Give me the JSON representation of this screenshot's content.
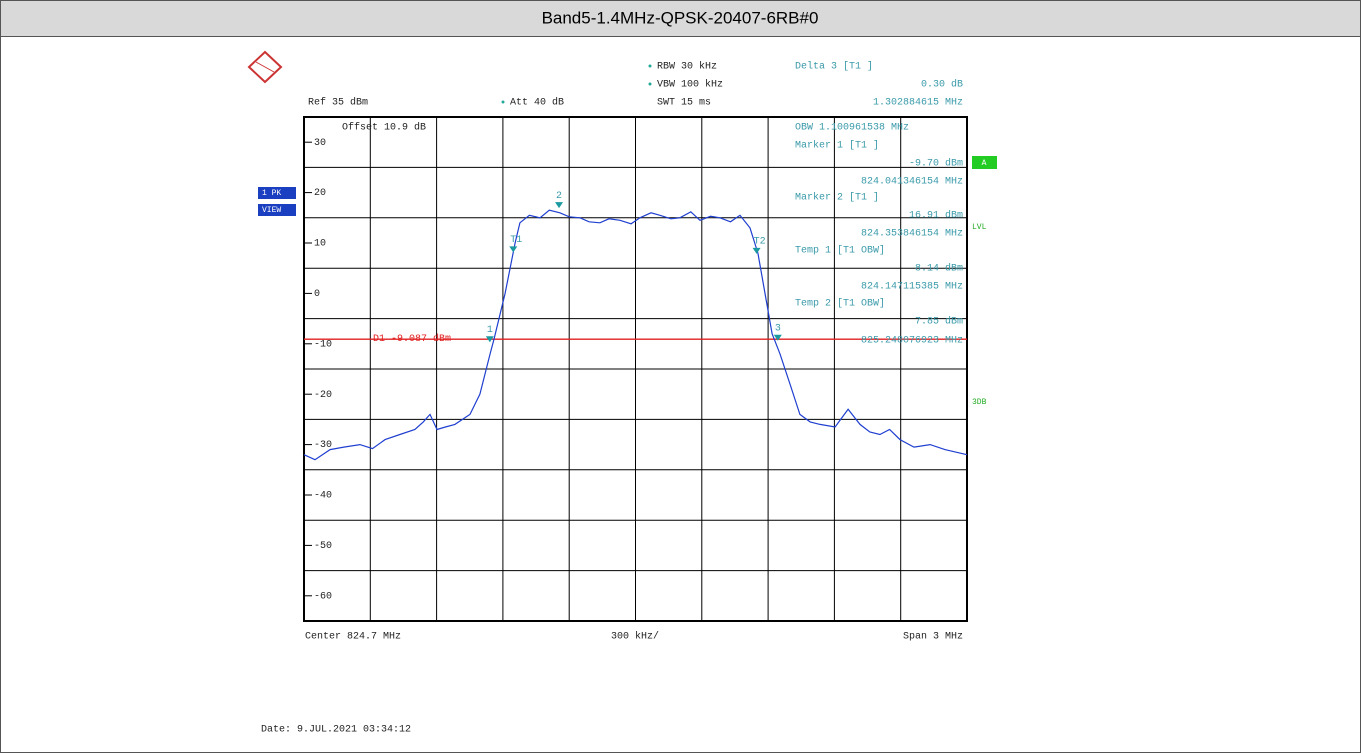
{
  "header": {
    "title": "Band5-1.4MHz-QPSK-20407-6RB#0"
  },
  "chart_data": {
    "type": "line",
    "settings": {
      "ref": "Ref  35 dBm",
      "att": "Att   40 dB",
      "rbw": "RBW  30 kHz",
      "vbw": "VBW  100 kHz",
      "swt": "SWT  15 ms",
      "offset": "Offset   10.9 dB"
    },
    "readout": [
      "Delta 3 [T1 ]",
      "0.30 dB",
      "1.302884615 MHz",
      "OBW  1.100961538 MHz",
      "Marker 1 [T1 ]",
      "-9.70 dBm",
      "824.041346154 MHz",
      "Marker 2 [T1 ]",
      "16.91 dBm",
      "824.353846154 MHz",
      "Temp 1 [T1 OBW]",
      "8.14 dBm",
      "824.147115385 MHz",
      "Temp 2 [T1 OBW]",
      "7.85 dBm",
      "825.248076923 MHz"
    ],
    "footer": {
      "center": "Center  824.7 MHz",
      "div": "300 kHz/",
      "span": "Span  3 MHz",
      "date": "Date: 9.JUL.2021  03:34:12"
    },
    "side": {
      "trace": "1 PK",
      "view": "VIEW",
      "a": "A",
      "lvl": "LVL",
      "db": "3DB"
    },
    "display_line": {
      "value": -9.087,
      "label": "D1  -9.087 dBm"
    },
    "markers": [
      {
        "label": "1",
        "x": 824.041,
        "value": -9.7
      },
      {
        "label": "T1",
        "x": 824.147,
        "value": 8.14
      },
      {
        "label": "2",
        "x": 824.354,
        "value": 16.91
      },
      {
        "label": "T2",
        "x": 825.248,
        "value": 7.85
      },
      {
        "label": "3",
        "x": 825.344,
        "value": -9.4
      }
    ],
    "color": "#1f3fd0",
    "x": [
      823.2,
      823.25,
      823.318,
      823.38,
      823.453,
      823.51,
      823.567,
      823.634,
      823.702,
      823.74,
      823.77,
      823.802,
      823.84,
      823.883,
      823.951,
      823.996,
      824.042,
      824.06,
      824.11,
      824.155,
      824.177,
      824.22,
      824.268,
      824.31,
      824.358,
      824.4,
      824.449,
      824.49,
      824.539,
      824.58,
      824.63,
      824.68,
      824.72,
      824.77,
      824.811,
      824.86,
      824.901,
      824.95,
      824.992,
      825.04,
      825.082,
      825.13,
      825.173,
      825.218,
      825.254,
      825.286,
      825.318,
      825.354,
      825.399,
      825.444,
      825.49,
      825.535,
      825.603,
      825.662,
      825.716,
      825.76,
      825.806,
      825.85,
      825.897,
      825.96,
      826.033,
      826.1,
      826.2
    ],
    "values": [
      -32,
      -33,
      -31,
      -30.5,
      -30,
      -30.8,
      -29,
      -28,
      -27,
      -25.5,
      -24,
      -27,
      -26.5,
      -26,
      -24,
      -20,
      -12,
      -9,
      0,
      10,
      14,
      15.5,
      15,
      16.5,
      16,
      15.2,
      15,
      14.2,
      14,
      14.8,
      14.5,
      13.8,
      15,
      16,
      15.5,
      14.8,
      15,
      16.2,
      14.5,
      15.3,
      15,
      14.2,
      15.5,
      13,
      8,
      0,
      -8,
      -12,
      -18,
      -24,
      -25.5,
      -26,
      -26.5,
      -23,
      -26,
      -27.5,
      -28,
      -27,
      -29,
      -30.5,
      -30,
      -31,
      -32
    ],
    "xlim": [
      823.2,
      826.2
    ],
    "ylim": [
      -65,
      35
    ],
    "yticks": [
      30,
      20,
      10,
      0,
      -10,
      -20,
      -30,
      -40,
      -50,
      -60
    ]
  }
}
